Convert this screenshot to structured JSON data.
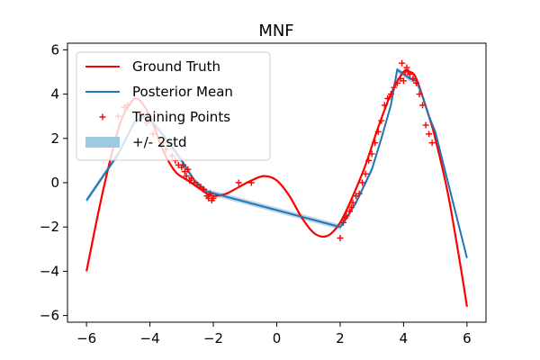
{
  "chart_data": {
    "type": "line",
    "title": "MNF",
    "xlabel": "",
    "ylabel": "",
    "xlim": [
      -6.6,
      6.6
    ],
    "ylim": [
      -6.3,
      6.3
    ],
    "x_ticks": [
      -6,
      -4,
      -2,
      0,
      2,
      4,
      6
    ],
    "y_ticks": [
      -6,
      -4,
      -2,
      0,
      2,
      4,
      6
    ],
    "x_tick_labels": [
      "−6",
      "−4",
      "−2",
      "0",
      "2",
      "4",
      "6"
    ],
    "y_tick_labels": [
      "−6",
      "−4",
      "−2",
      "0",
      "2",
      "4",
      "6"
    ],
    "grid": false,
    "legend_position": "top-left",
    "legend": [
      {
        "label": "Ground Truth",
        "kind": "line",
        "color": "#ff0000"
      },
      {
        "label": "Posterior Mean",
        "kind": "line",
        "color": "#1f77b4"
      },
      {
        "label": "Training Points",
        "kind": "marker",
        "color": "#ff0000"
      },
      {
        "label": "+/- 2std",
        "kind": "band",
        "color": "#9ecae1"
      }
    ],
    "series": [
      {
        "name": "Ground Truth",
        "color": "#ff0000",
        "x": [
          -6.0,
          -5.5,
          -5.0,
          -4.7,
          -4.4,
          -4.0,
          -3.6,
          -3.2,
          -2.8,
          -2.5,
          -2.2,
          -2.0,
          -1.6,
          -1.2,
          -0.8,
          -0.4,
          0.0,
          0.4,
          0.8,
          1.2,
          1.6,
          2.0,
          2.4,
          2.8,
          3.2,
          3.6,
          4.0,
          4.2,
          4.4,
          4.8,
          5.0,
          5.4,
          5.8,
          6.0
        ],
        "y": [
          -4.0,
          -0.5,
          2.4,
          3.4,
          3.8,
          3.0,
          1.5,
          0.5,
          0.1,
          -0.2,
          -0.5,
          -0.6,
          -0.5,
          -0.2,
          0.1,
          0.3,
          0.1,
          -0.6,
          -1.6,
          -2.3,
          -2.4,
          -1.8,
          -0.6,
          0.8,
          2.5,
          4.0,
          5.0,
          5.0,
          4.7,
          3.0,
          2.0,
          -0.5,
          -3.8,
          -5.6
        ]
      },
      {
        "name": "Posterior Mean",
        "color": "#1f77b4",
        "x": [
          -6.0,
          -5.0,
          -4.5,
          -4.2,
          -3.9,
          -3.5,
          -3.0,
          -2.6,
          -2.2,
          2.0,
          2.2,
          2.5,
          2.8,
          3.0,
          3.3,
          3.6,
          3.8,
          4.0,
          4.2,
          4.4,
          4.6,
          4.8,
          5.0,
          6.0
        ],
        "y": [
          -0.8,
          1.3,
          2.7,
          3.0,
          2.7,
          2.0,
          1.0,
          0.1,
          -0.4,
          -2.0,
          -1.6,
          -0.9,
          0.0,
          0.6,
          2.0,
          3.5,
          5.1,
          4.9,
          4.7,
          4.6,
          3.9,
          3.0,
          2.3,
          -3.4
        ]
      }
    ],
    "band": {
      "name": "+/- 2std",
      "color": "#1f77b4",
      "opacity": 0.3,
      "half_width": 0.12
    },
    "training_points": {
      "name": "Training Points",
      "color": "#ff0000",
      "x": [
        -5.0,
        -4.8,
        -4.7,
        -4.3,
        -4.1,
        -3.9,
        -3.6,
        -3.5,
        -3.3,
        -3.2,
        -3.1,
        -3.0,
        -2.95,
        -2.9,
        -2.85,
        -2.8,
        -2.75,
        -2.7,
        -2.6,
        -2.5,
        -2.4,
        -2.3,
        -2.2,
        -2.15,
        -2.1,
        -2.05,
        -2.0,
        -1.2,
        -0.8,
        2.0,
        2.1,
        2.15,
        2.2,
        2.3,
        2.35,
        2.4,
        2.5,
        2.6,
        2.7,
        2.8,
        2.9,
        3.0,
        3.1,
        3.2,
        3.3,
        3.4,
        3.5,
        3.6,
        3.7,
        3.8,
        3.9,
        3.95,
        4.0,
        4.05,
        4.1,
        4.15,
        4.2,
        4.3,
        4.4,
        4.5,
        4.6,
        4.7,
        4.8,
        4.9
      ],
      "y": [
        3.0,
        3.4,
        3.5,
        3.1,
        2.7,
        2.2,
        1.8,
        1.5,
        1.2,
        1.0,
        0.8,
        0.7,
        0.8,
        0.5,
        0.3,
        0.6,
        0.1,
        0.2,
        0.0,
        -0.1,
        -0.2,
        -0.3,
        -0.6,
        -0.7,
        -0.5,
        -0.8,
        -0.7,
        0.0,
        0.0,
        -2.5,
        -1.8,
        -1.6,
        -1.5,
        -1.3,
        -1.1,
        -0.9,
        -0.6,
        -0.5,
        0.0,
        0.4,
        1.0,
        1.3,
        1.8,
        2.3,
        2.8,
        3.5,
        3.8,
        4.0,
        4.3,
        4.5,
        4.7,
        5.4,
        4.6,
        5.0,
        5.2,
        5.0,
        4.9,
        4.7,
        4.5,
        4.0,
        3.5,
        2.6,
        2.2,
        1.8
      ]
    }
  }
}
